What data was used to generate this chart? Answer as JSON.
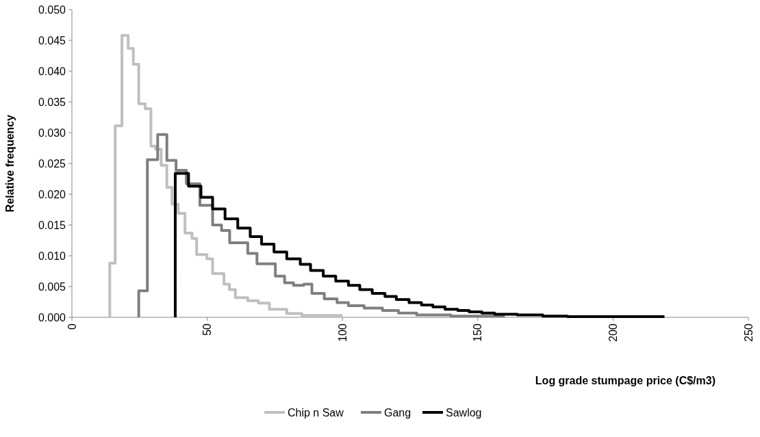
{
  "chart_data": {
    "type": "step",
    "xlabel": "Log grade stumpage price (C$/m3)",
    "ylabel": "Relative frequency",
    "xlim": [
      0,
      250
    ],
    "xticks": [
      0,
      50,
      100,
      150,
      200,
      250
    ],
    "ylim": [
      0,
      0.05
    ],
    "yticks": [
      {
        "value": 0,
        "label": "0.000"
      },
      {
        "value": 0.005,
        "label": "0.005"
      },
      {
        "value": 0.01,
        "label": "0.010"
      },
      {
        "value": 0.015,
        "label": "0.015"
      },
      {
        "value": 0.02,
        "label": "0.020"
      },
      {
        "value": 0.025,
        "label": "0.025"
      },
      {
        "value": 0.03,
        "label": "0.030"
      },
      {
        "value": 0.035,
        "label": "0.035"
      },
      {
        "value": 0.04,
        "label": "0.040"
      },
      {
        "value": 0.045,
        "label": "0.045"
      },
      {
        "value": 0.05,
        "label": "0.050"
      }
    ],
    "grid": false,
    "legend": "bottom",
    "line_style": "solid",
    "series": [
      {
        "name": "Chip n Saw",
        "color": "#bfbfbf",
        "x": [
          14,
          14,
          16,
          18.5,
          20.8,
          22.7,
          24.7,
          27.1,
          29.2,
          30.9,
          33,
          35.1,
          37,
          39.3,
          41.8,
          44.4,
          46.1,
          49.9,
          52,
          56.2,
          58.2,
          60.4,
          65,
          68.9,
          73,
          79.4,
          85,
          92,
          100
        ],
        "values": [
          0,
          0.0088,
          0.0311,
          0.0458,
          0.0437,
          0.0411,
          0.0347,
          0.0339,
          0.0278,
          0.0273,
          0.0247,
          0.0211,
          0.0184,
          0.0169,
          0.0137,
          0.0128,
          0.0102,
          0.0095,
          0.0071,
          0.0054,
          0.0045,
          0.0032,
          0.0027,
          0.0023,
          0.0013,
          0.0006,
          0.0003,
          0.0003,
          0.0003
        ]
      },
      {
        "name": "Gang",
        "color": "#7f7f7f",
        "x": [
          24.7,
          24.7,
          27.9,
          31.7,
          35.1,
          38.5,
          42.3,
          47.3,
          52,
          55.3,
          58.3,
          65,
          68.4,
          75.2,
          78.6,
          81.9,
          85.7,
          88.7,
          93.3,
          98,
          102.2,
          108,
          114.8,
          120.7,
          127.4,
          140,
          160
        ],
        "values": [
          0,
          0.0043,
          0.0256,
          0.0297,
          0.0255,
          0.0239,
          0.0217,
          0.0182,
          0.015,
          0.0141,
          0.0121,
          0.0104,
          0.0087,
          0.0067,
          0.0056,
          0.0052,
          0.0054,
          0.0039,
          0.003,
          0.0024,
          0.0019,
          0.0015,
          0.0011,
          0.0007,
          0.0004,
          0.0002,
          0.0002
        ]
      },
      {
        "name": "Sawlog",
        "color": "#000000",
        "x": [
          38.2,
          38.2,
          43.1,
          47.7,
          52,
          56.6,
          61.3,
          65.9,
          70.1,
          74.7,
          79.4,
          84.4,
          88.2,
          92.9,
          97.5,
          102.2,
          106.4,
          111,
          115.7,
          119.9,
          124.6,
          129.2,
          133.4,
          137.9,
          142.6,
          146.8,
          151.5,
          156.2,
          164.6,
          174,
          183.2,
          219
        ],
        "values": [
          0,
          0.0234,
          0.0213,
          0.0195,
          0.0176,
          0.016,
          0.0145,
          0.0131,
          0.0119,
          0.0106,
          0.0095,
          0.0086,
          0.0076,
          0.0067,
          0.0059,
          0.0052,
          0.0045,
          0.0039,
          0.0034,
          0.0029,
          0.0024,
          0.002,
          0.0017,
          0.0013,
          0.0011,
          0.0009,
          0.0007,
          0.0005,
          0.0004,
          0.0002,
          0.0001,
          0.0001
        ]
      }
    ]
  }
}
